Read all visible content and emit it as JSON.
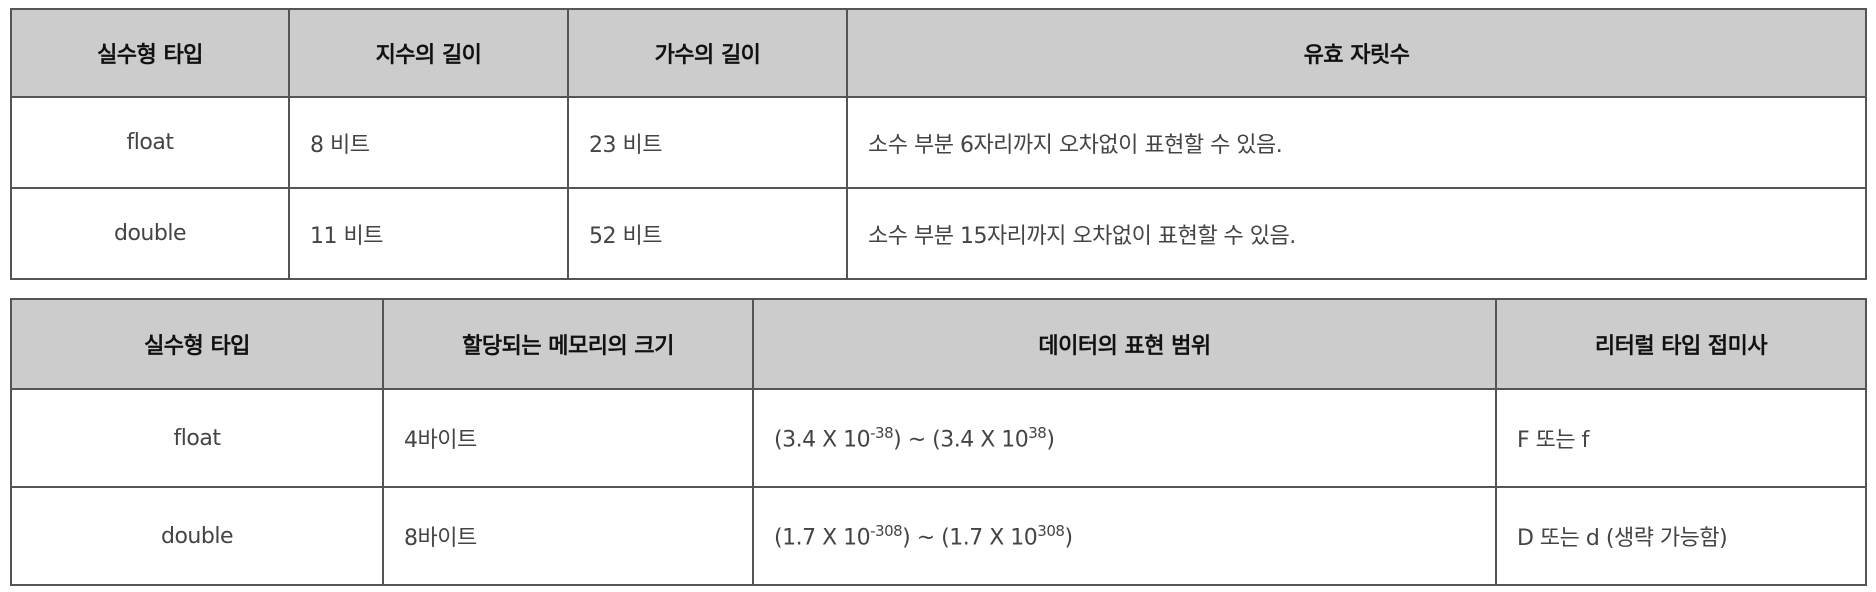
{
  "table1": {
    "headers": [
      "실수형 타입",
      "지수의 길이",
      "가수의 길이",
      "유효 자릿수"
    ],
    "rows": [
      [
        "float",
        "8 비트",
        "23 비트",
        "소수 부분 6자리까지 오차없이 표현할 수 있음."
      ],
      [
        "double",
        "11 비트",
        "52 비트",
        "소수 부분 15자리까지 오차없이 표현할 수 있음."
      ]
    ]
  },
  "table2": {
    "headers": [
      "실수형 타입",
      "할당되는 메모리의 크기",
      "데이터의 표현 범위",
      "리터럴 타입 접미사"
    ],
    "rows": [
      {
        "type": "float",
        "memory": "4바이트",
        "range": {
          "min_base": "(3.4 X 10",
          "min_exp": "-38",
          "sep": ") ~ (3.4 X 10",
          "max_exp": "38",
          "end": ")"
        },
        "suffix": "F 또는 f"
      },
      {
        "type": "double",
        "memory": "8바이트",
        "range": {
          "min_base": "(1.7 X 10",
          "min_exp": "-308",
          "sep": ") ~ (1.7 X 10",
          "max_exp": "308",
          "end": ")"
        },
        "suffix": "D 또는 d (생략 가능함)"
      }
    ]
  },
  "colors": {
    "header_bg": "#cccccc",
    "border": "#555555"
  }
}
